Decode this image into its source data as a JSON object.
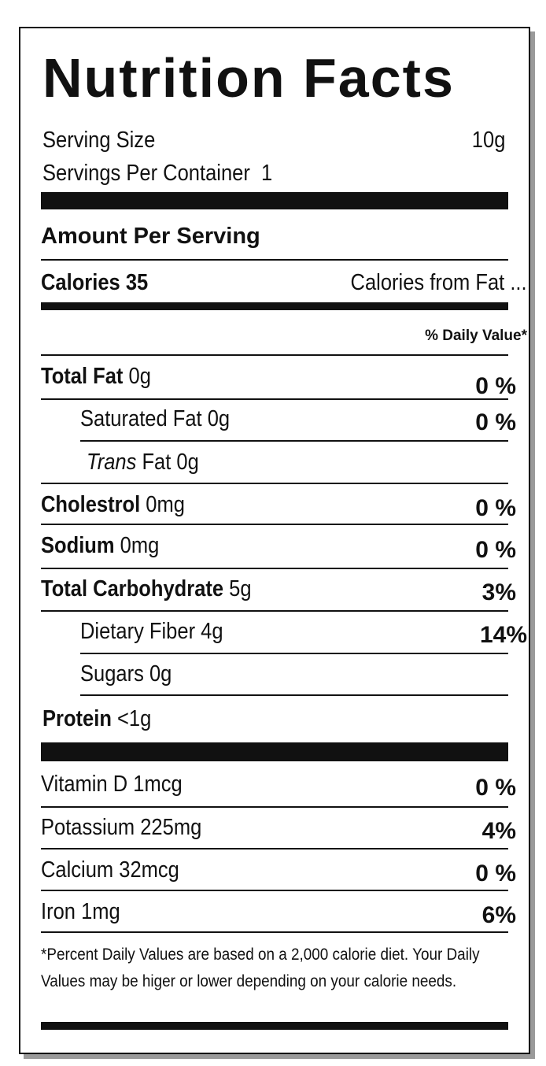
{
  "title": "Nutrition Facts",
  "serving": {
    "size_label": "Serving Size",
    "size_value": "10g",
    "per_container_label": "Servings Per Container",
    "per_container_value": "1"
  },
  "amount_per_serving": "Amount Per Serving",
  "calories": {
    "label": "Calories",
    "value": "35",
    "from_fat": "Calories from Fat ..."
  },
  "daily_value_header": "% Daily Value*",
  "nutrients": [
    {
      "name": "Total Fat",
      "amount": "0g",
      "dv": "0 %"
    },
    {
      "name": "Saturated Fat",
      "amount": "0g",
      "dv": "0 %"
    },
    {
      "name_italic": "Trans",
      "name": "Fat",
      "amount": "0g",
      "dv": ""
    },
    {
      "name": "Cholestrol",
      "amount": "0mg",
      "dv": "0 %"
    },
    {
      "name": "Sodium",
      "amount": "0mg",
      "dv": "0 %"
    },
    {
      "name": "Total Carbohydrate",
      "amount": "5g",
      "dv": "3%"
    },
    {
      "name": "Dietary Fiber",
      "amount": "4g",
      "dv": "14%"
    },
    {
      "name": "Sugars",
      "amount": "0g",
      "dv": ""
    },
    {
      "name": "Protein",
      "amount": "<1g",
      "dv": ""
    }
  ],
  "vitamins": [
    {
      "name": "Vitamin D",
      "amount": "1mcg",
      "dv": "0 %"
    },
    {
      "name": "Potassium",
      "amount": "225mg",
      "dv": "4%"
    },
    {
      "name": "Calcium",
      "amount": "32mcg",
      "dv": "0 %"
    },
    {
      "name": "Iron",
      "amount": "1mg",
      "dv": "6%"
    }
  ],
  "footnote": "*Percent Daily Values are based on a 2,000 calorie diet. Your Daily Values may be higer or lower depending on your calorie needs."
}
